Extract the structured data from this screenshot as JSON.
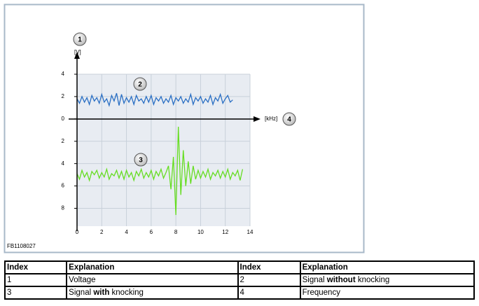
{
  "chart_data": {
    "type": "line",
    "ylabel": "[V]",
    "xlabel": "[kHz]",
    "figure_id": "FB1108027",
    "annotations": [
      "1",
      "2",
      "3",
      "4"
    ],
    "xlim": [
      0,
      14
    ],
    "xticks": [
      0,
      2,
      4,
      6,
      8,
      10,
      12,
      14
    ],
    "ylim": [
      -9.6,
      4
    ],
    "yticks": [
      4,
      2,
      0,
      {
        "value": -2,
        "label": "2"
      },
      {
        "value": -4,
        "label": "4"
      },
      {
        "value": -6,
        "label": "6"
      },
      {
        "value": -8,
        "label": "8"
      }
    ],
    "grid": true,
    "x": [
      0,
      0.2,
      0.4,
      0.6,
      0.8,
      1,
      1.2,
      1.4,
      1.6,
      1.8,
      2,
      2.2,
      2.4,
      2.6,
      2.8,
      3,
      3.2,
      3.4,
      3.6,
      3.8,
      4,
      4.2,
      4.4,
      4.6,
      4.8,
      5,
      5.2,
      5.4,
      5.6,
      5.8,
      6,
      6.2,
      6.4,
      6.6,
      6.8,
      7,
      7.2,
      7.4,
      7.6,
      7.8,
      8,
      8.2,
      8.4,
      8.6,
      8.8,
      9,
      9.2,
      9.4,
      9.6,
      9.8,
      10,
      10.2,
      10.4,
      10.6,
      10.8,
      11,
      11.2,
      11.4,
      11.6,
      11.8,
      12,
      12.2,
      12.4,
      12.6,
      12.8,
      13,
      13.2,
      13.4
    ],
    "series": [
      {
        "color": "#2a6fc4",
        "values": [
          1.8,
          1.4,
          2.0,
          1.5,
          1.9,
          1.3,
          2.1,
          1.6,
          1.9,
          1.4,
          2.2,
          1.5,
          1.8,
          1.2,
          2.1,
          1.6,
          2.3,
          1.2,
          2.2,
          1.4,
          1.9,
          1.5,
          2.0,
          1.3,
          2.1,
          1.6,
          1.8,
          1.4,
          2.0,
          1.5,
          2.1,
          1.3,
          1.9,
          1.6,
          2.0,
          1.4,
          1.8,
          1.5,
          2.1,
          1.3,
          1.9,
          1.6,
          2.0,
          1.4,
          1.8,
          1.5,
          2.2,
          1.3,
          1.9,
          1.6,
          2.0,
          1.4,
          1.8,
          1.5,
          2.1,
          1.3,
          1.9,
          1.6,
          2.2,
          1.4,
          1.8,
          2.1,
          1.5,
          1.7,
          null,
          null,
          null,
          null
        ]
      },
      {
        "color": "#66dd22",
        "values": [
          -4.9,
          -5.4,
          -4.6,
          -5.2,
          -4.8,
          -5.5,
          -4.7,
          -5.0,
          -4.6,
          -5.3,
          -4.8,
          -5.2,
          -4.5,
          -5.4,
          -4.9,
          -5.1,
          -4.6,
          -5.3,
          -4.7,
          -5.4,
          -4.6,
          -5.2,
          -4.8,
          -5.5,
          -4.7,
          -5.1,
          -4.5,
          -5.3,
          -4.8,
          -5.2,
          -4.6,
          -5.4,
          -4.7,
          -5.1,
          -4.5,
          -5.3,
          -4.8,
          -4.2,
          -6.3,
          -3.4,
          -8.6,
          -0.7,
          -6.8,
          -2.8,
          -6.0,
          -3.8,
          -5.8,
          -4.2,
          -5.4,
          -4.6,
          -5.3,
          -4.7,
          -5.2,
          -4.5,
          -5.4,
          -4.8,
          -5.1,
          -4.6,
          -5.3,
          -4.7,
          -5.2,
          -4.5,
          -5.4,
          -4.8,
          -5.1,
          -4.6,
          -5.5,
          -4.5
        ]
      }
    ]
  },
  "table": {
    "header": [
      "Index",
      "Explanation",
      "Index",
      "Explanation"
    ],
    "rows": [
      [
        "1",
        "Voltage",
        "2",
        [
          "Signal ",
          "without",
          " knocking"
        ]
      ],
      [
        "3",
        [
          "Signal ",
          "with",
          " knocking"
        ],
        "4",
        "Frequency"
      ]
    ]
  }
}
